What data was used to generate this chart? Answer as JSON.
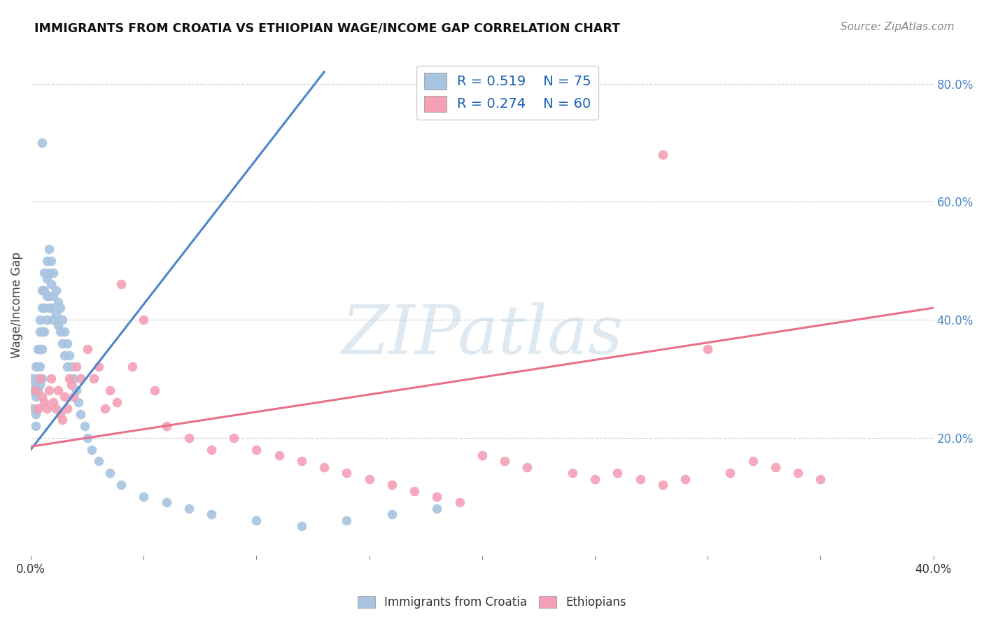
{
  "title": "IMMIGRANTS FROM CROATIA VS ETHIOPIAN WAGE/INCOME GAP CORRELATION CHART",
  "source": "Source: ZipAtlas.com",
  "ylabel": "Wage/Income Gap",
  "xlim": [
    0.0,
    0.4
  ],
  "ylim": [
    0.0,
    0.85
  ],
  "xtick_positions": [
    0.0,
    0.05,
    0.1,
    0.15,
    0.2,
    0.25,
    0.3,
    0.35,
    0.4
  ],
  "xticklabels": [
    "0.0%",
    "",
    "",
    "",
    "",
    "",
    "",
    "",
    "40.0%"
  ],
  "ytick_right_positions": [
    0.2,
    0.4,
    0.6,
    0.8
  ],
  "ytick_right_labels": [
    "20.0%",
    "40.0%",
    "60.0%",
    "80.0%"
  ],
  "legend_R1": "R = 0.519",
  "legend_N1": "N = 75",
  "legend_R2": "R = 0.274",
  "legend_N2": "N = 60",
  "croatia_color": "#a8c4e0",
  "ethiopia_color": "#f4a0b5",
  "line_croatia_color": "#4a86c8",
  "line_ethiopia_color": "#e8708a",
  "background_color": "#ffffff",
  "grid_color": "#cccccc",
  "croatia_x": [
    0.001,
    0.001,
    0.001,
    0.002,
    0.002,
    0.002,
    0.002,
    0.002,
    0.003,
    0.003,
    0.003,
    0.003,
    0.003,
    0.004,
    0.004,
    0.004,
    0.004,
    0.004,
    0.005,
    0.005,
    0.005,
    0.005,
    0.005,
    0.006,
    0.006,
    0.006,
    0.006,
    0.007,
    0.007,
    0.007,
    0.007,
    0.008,
    0.008,
    0.008,
    0.009,
    0.009,
    0.009,
    0.01,
    0.01,
    0.01,
    0.011,
    0.011,
    0.012,
    0.012,
    0.013,
    0.013,
    0.014,
    0.014,
    0.015,
    0.015,
    0.016,
    0.016,
    0.017,
    0.018,
    0.019,
    0.02,
    0.021,
    0.022,
    0.024,
    0.025,
    0.027,
    0.03,
    0.035,
    0.04,
    0.05,
    0.06,
    0.07,
    0.08,
    0.1,
    0.12,
    0.14,
    0.16,
    0.18,
    0.005,
    0.008
  ],
  "croatia_y": [
    0.3,
    0.28,
    0.25,
    0.32,
    0.29,
    0.27,
    0.24,
    0.22,
    0.35,
    0.32,
    0.3,
    0.28,
    0.25,
    0.4,
    0.38,
    0.35,
    0.32,
    0.29,
    0.45,
    0.42,
    0.38,
    0.35,
    0.3,
    0.48,
    0.45,
    0.42,
    0.38,
    0.5,
    0.47,
    0.44,
    0.4,
    0.52,
    0.48,
    0.44,
    0.5,
    0.46,
    0.42,
    0.48,
    0.44,
    0.4,
    0.45,
    0.41,
    0.43,
    0.39,
    0.42,
    0.38,
    0.4,
    0.36,
    0.38,
    0.34,
    0.36,
    0.32,
    0.34,
    0.32,
    0.3,
    0.28,
    0.26,
    0.24,
    0.22,
    0.2,
    0.18,
    0.16,
    0.14,
    0.12,
    0.1,
    0.09,
    0.08,
    0.07,
    0.06,
    0.05,
    0.06,
    0.07,
    0.08,
    0.7,
    0.42
  ],
  "croatia_line_x": [
    0.0,
    0.13
  ],
  "croatia_line_y": [
    0.18,
    0.82
  ],
  "ethiopia_x": [
    0.002,
    0.003,
    0.004,
    0.005,
    0.006,
    0.007,
    0.008,
    0.009,
    0.01,
    0.011,
    0.012,
    0.013,
    0.014,
    0.015,
    0.016,
    0.017,
    0.018,
    0.019,
    0.02,
    0.022,
    0.025,
    0.028,
    0.03,
    0.033,
    0.035,
    0.038,
    0.04,
    0.045,
    0.05,
    0.055,
    0.06,
    0.07,
    0.08,
    0.09,
    0.1,
    0.11,
    0.12,
    0.13,
    0.14,
    0.15,
    0.16,
    0.17,
    0.18,
    0.19,
    0.2,
    0.21,
    0.22,
    0.24,
    0.25,
    0.26,
    0.27,
    0.28,
    0.29,
    0.3,
    0.31,
    0.32,
    0.33,
    0.34,
    0.35,
    0.28
  ],
  "ethiopia_y": [
    0.28,
    0.25,
    0.3,
    0.27,
    0.26,
    0.25,
    0.28,
    0.3,
    0.26,
    0.25,
    0.28,
    0.24,
    0.23,
    0.27,
    0.25,
    0.3,
    0.29,
    0.27,
    0.32,
    0.3,
    0.35,
    0.3,
    0.32,
    0.25,
    0.28,
    0.26,
    0.46,
    0.32,
    0.4,
    0.28,
    0.22,
    0.2,
    0.18,
    0.2,
    0.18,
    0.17,
    0.16,
    0.15,
    0.14,
    0.13,
    0.12,
    0.11,
    0.1,
    0.09,
    0.17,
    0.16,
    0.15,
    0.14,
    0.13,
    0.14,
    0.13,
    0.12,
    0.13,
    0.35,
    0.14,
    0.16,
    0.15,
    0.14,
    0.13,
    0.68
  ],
  "ethiopia_line_x": [
    0.0,
    0.4
  ],
  "ethiopia_line_y": [
    0.185,
    0.42
  ],
  "watermark_text": "ZIPatlas",
  "watermark_color": "#b8cfe0",
  "watermark_alpha": 0.45
}
